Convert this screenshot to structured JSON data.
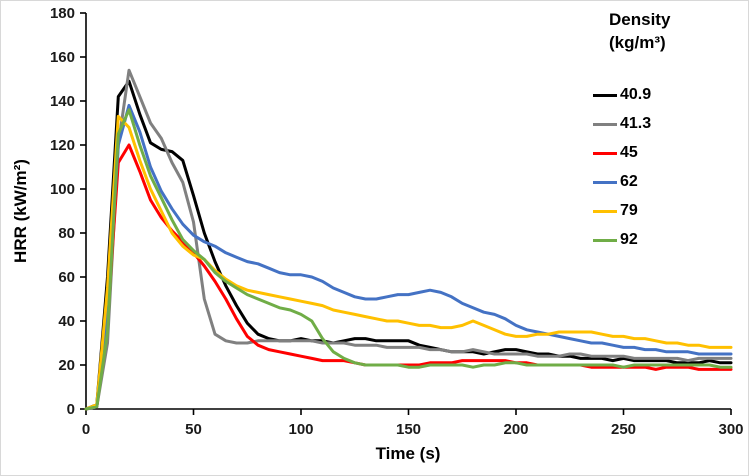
{
  "chart_data": {
    "type": "line",
    "title": "",
    "xlabel": "Time (s)",
    "ylabel": "HRR (kW/m²)",
    "xlim": [
      0,
      300
    ],
    "ylim": [
      0,
      180
    ],
    "xticks": [
      0,
      50,
      100,
      150,
      200,
      250,
      300
    ],
    "yticks": [
      0,
      20,
      40,
      60,
      80,
      100,
      120,
      140,
      160,
      180
    ],
    "grid": false,
    "legend_position": "right-top",
    "legend_title": {
      "line1": "Density",
      "line2": "(kg/m³)"
    },
    "series": [
      {
        "name": "40.9",
        "color": "#000000",
        "x_start": 0,
        "x_step": 5,
        "values": [
          0,
          2,
          60,
          142,
          149,
          134,
          121,
          118,
          117,
          113,
          97,
          80,
          67,
          56,
          47,
          39,
          34,
          32,
          31,
          31,
          32,
          31,
          31,
          30,
          31,
          32,
          32,
          31,
          31,
          31,
          31,
          29,
          28,
          27,
          26,
          26,
          26,
          25,
          26,
          27,
          27,
          26,
          25,
          25,
          24,
          24,
          23,
          23,
          23,
          22,
          23,
          22,
          22,
          22,
          22,
          21,
          21,
          21,
          22,
          21,
          21
        ]
      },
      {
        "name": "41.3",
        "color": "#808080",
        "x_start": 0,
        "x_step": 5,
        "values": [
          0,
          1,
          30,
          120,
          154,
          142,
          130,
          123,
          112,
          103,
          85,
          50,
          34,
          31,
          30,
          30,
          31,
          31,
          31,
          31,
          31,
          31,
          30,
          30,
          30,
          29,
          29,
          29,
          28,
          28,
          28,
          28,
          27,
          27,
          26,
          26,
          27,
          26,
          25,
          25,
          25,
          25,
          24,
          24,
          24,
          25,
          25,
          24,
          24,
          24,
          24,
          23,
          23,
          23,
          23,
          23,
          22,
          23,
          23,
          23,
          23
        ]
      },
      {
        "name": "45",
        "color": "#FF0000",
        "x_start": 0,
        "x_step": 5,
        "values": [
          0,
          1,
          40,
          112,
          120,
          108,
          95,
          87,
          81,
          76,
          71,
          65,
          58,
          50,
          41,
          33,
          29,
          27,
          26,
          25,
          24,
          23,
          22,
          22,
          22,
          21,
          20,
          20,
          20,
          20,
          20,
          20,
          21,
          21,
          21,
          22,
          22,
          22,
          22,
          22,
          21,
          21,
          20,
          20,
          20,
          20,
          20,
          19,
          19,
          19,
          19,
          19,
          19,
          18,
          19,
          19,
          19,
          18,
          18,
          18,
          18
        ]
      },
      {
        "name": "62",
        "color": "#4472C4",
        "x_start": 0,
        "x_step": 5,
        "values": [
          0,
          1,
          45,
          120,
          138,
          126,
          110,
          99,
          91,
          84,
          79,
          76,
          74,
          71,
          69,
          67,
          66,
          64,
          62,
          61,
          61,
          60,
          58,
          55,
          53,
          51,
          50,
          50,
          51,
          52,
          52,
          53,
          54,
          53,
          51,
          48,
          46,
          44,
          43,
          41,
          38,
          36,
          35,
          34,
          33,
          32,
          31,
          30,
          30,
          29,
          28,
          28,
          27,
          27,
          26,
          26,
          26,
          25,
          25,
          25,
          25
        ]
      },
      {
        "name": "79",
        "color": "#FFC000",
        "x_start": 0,
        "x_step": 5,
        "values": [
          0,
          2,
          55,
          133,
          128,
          113,
          100,
          90,
          80,
          74,
          70,
          68,
          63,
          59,
          56,
          54,
          53,
          52,
          51,
          50,
          49,
          48,
          47,
          45,
          44,
          43,
          42,
          41,
          40,
          40,
          39,
          38,
          38,
          37,
          37,
          38,
          40,
          38,
          36,
          34,
          33,
          33,
          34,
          34,
          35,
          35,
          35,
          35,
          34,
          33,
          33,
          32,
          32,
          31,
          30,
          30,
          29,
          29,
          28,
          28,
          28
        ]
      },
      {
        "name": "92",
        "color": "#70AD47",
        "x_start": 0,
        "x_step": 5,
        "values": [
          0,
          1,
          35,
          125,
          136,
          120,
          106,
          96,
          86,
          77,
          72,
          68,
          62,
          58,
          55,
          52,
          50,
          48,
          46,
          45,
          43,
          40,
          32,
          26,
          23,
          21,
          20,
          20,
          20,
          20,
          19,
          19,
          20,
          20,
          20,
          20,
          19,
          20,
          20,
          21,
          21,
          20,
          20,
          20,
          20,
          20,
          20,
          20,
          20,
          20,
          19,
          20,
          20,
          20,
          20,
          20,
          20,
          20,
          20,
          19,
          19
        ]
      }
    ]
  }
}
